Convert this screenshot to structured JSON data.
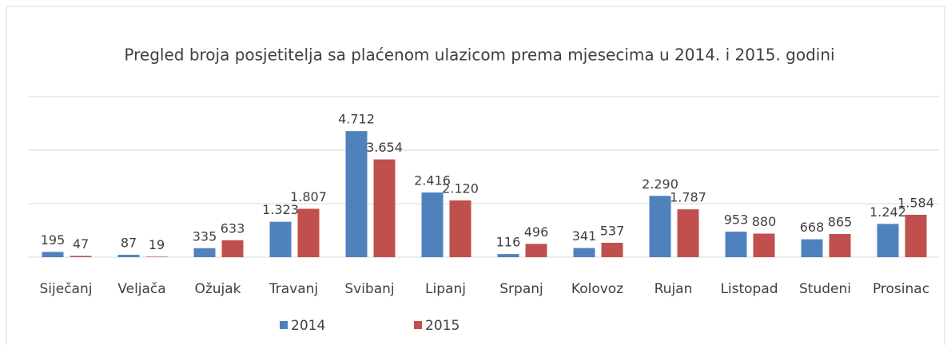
{
  "chart_data": {
    "type": "bar",
    "title": "Pregled broja posjetitelja sa plaćenom ulazicom prema mjesecima u 2014. i 2015. godini",
    "categories": [
      "Siječanj",
      "Veljača",
      "Ožujak",
      "Travanj",
      "Svibanj",
      "Lipanj",
      "Srpanj",
      "Kolovoz",
      "Rujan",
      "Listopad",
      "Studeni",
      "Prosinac"
    ],
    "series": [
      {
        "name": "2014",
        "color": "#4f81bd",
        "values": [
          195,
          87,
          335,
          1323,
          4712,
          2416,
          116,
          341,
          2290,
          953,
          668,
          1242
        ],
        "value_labels": [
          "195",
          "87",
          "335",
          "1.323",
          "4.712",
          "2.416",
          "116",
          "341",
          "2.290",
          "953",
          "668",
          "1.242"
        ]
      },
      {
        "name": "2015",
        "color": "#c0504d",
        "values": [
          47,
          19,
          633,
          1807,
          3654,
          2120,
          496,
          537,
          1787,
          880,
          865,
          1584
        ],
        "value_labels": [
          "47",
          "19",
          "633",
          "1.807",
          "3.654",
          "2.120",
          "496",
          "537",
          "1.787",
          "880",
          "865",
          "1.584"
        ]
      }
    ],
    "ylim": [
      0,
      6000
    ],
    "yticks": [
      0,
      2000,
      4000,
      6000
    ],
    "grid": true,
    "legend": "bottom"
  }
}
